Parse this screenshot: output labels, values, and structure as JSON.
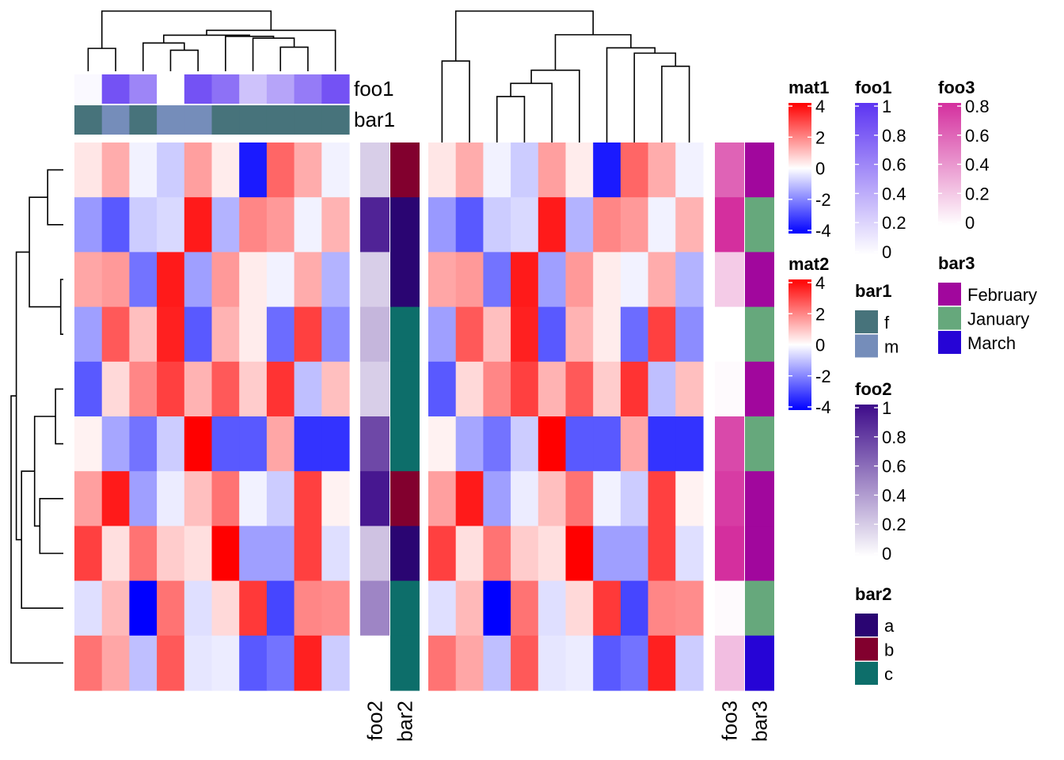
{
  "chart_data": {
    "type": "heatmap",
    "columns": 10,
    "rows": 10,
    "row_order": [
      8,
      7,
      2,
      4,
      6,
      9,
      1,
      0,
      5,
      3
    ],
    "col_order_mat1": [
      5,
      3,
      9,
      6,
      0,
      4,
      8,
      1,
      2,
      7
    ],
    "col_order_mat2": [
      5,
      3,
      9,
      6,
      0,
      4,
      8,
      1,
      2,
      7
    ],
    "mat1": [
      [
        0.5,
        -1.5,
        3.0,
        0.5,
        4.2,
        3.0,
        0.8,
        -0.5,
        -1.5,
        2.2
      ],
      [
        1.0,
        -0.8,
        3.0,
        3.6,
        2.2,
        1.5,
        -0.3,
        0.2,
        -0.2,
        -1.5
      ],
      [
        -1.5,
        -0.2,
        1.3,
        1.6,
        1.6,
        1.4,
        3.6,
        -1.2,
        0.3,
        -2.2
      ],
      [
        -0.4,
        -2.2,
        3.5,
        1.4,
        -0.3,
        2.2,
        2.6,
        -0.8,
        -2.6,
        -1.0
      ],
      [
        -2.6,
        -2.3,
        3.0,
        2.6,
        1.2,
        -1.5,
        3.5,
        -1.8,
        0.3,
        1.0
      ],
      [
        -0.5,
        -2.9,
        1.9,
        1.1,
        0.6,
        -0.5,
        2.2,
        1.8,
        3.1,
        -4.2
      ],
      [
        1.2,
        3.2,
        -1.0,
        0.6,
        2.6,
        -2.6,
        3.0,
        1.0,
        0.8,
        1.9
      ],
      [
        3.6,
        1.6,
        -0.2,
        -2.6,
        -1.2,
        -1.6,
        -0.6,
        1.2,
        1.9,
        -0.8
      ],
      [
        1.5,
        2.4,
        1.3,
        1.3,
        0.3,
        0.4,
        -0.8,
        -0.2,
        -3.6,
        -0.2
      ],
      [
        4.2,
        1.4,
        -3.2,
        -1.4,
        -2.6,
        0.2,
        -0.8,
        -3.2,
        -2.6,
        -2.2
      ]
    ],
    "mat2": [
      [
        0.5,
        -1.5,
        3.0,
        0.5,
        4.2,
        3.0,
        0.8,
        -0.5,
        -1.5,
        2.2
      ],
      [
        1.0,
        -0.8,
        3.0,
        3.6,
        2.2,
        1.5,
        -0.3,
        0.2,
        -0.2,
        -1.5
      ],
      [
        -1.5,
        -0.2,
        1.3,
        1.6,
        1.6,
        1.4,
        3.6,
        -1.2,
        0.3,
        -2.2
      ],
      [
        -0.4,
        -2.2,
        3.5,
        1.4,
        -0.3,
        2.2,
        2.6,
        -0.8,
        -2.6,
        -1.0
      ],
      [
        -2.6,
        -2.3,
        3.0,
        2.6,
        1.2,
        -1.5,
        3.5,
        -1.8,
        0.3,
        1.0
      ],
      [
        -0.5,
        -2.9,
        1.9,
        1.1,
        0.6,
        -0.5,
        2.2,
        1.8,
        3.1,
        -4.2
      ],
      [
        1.2,
        3.2,
        -1.0,
        0.6,
        2.6,
        -2.6,
        3.0,
        1.0,
        0.8,
        1.9
      ],
      [
        3.6,
        1.6,
        -0.2,
        -2.6,
        -1.2,
        -1.6,
        -0.6,
        1.2,
        1.9,
        -0.8
      ],
      [
        1.5,
        2.4,
        1.3,
        1.3,
        0.3,
        0.4,
        -0.8,
        -0.2,
        -3.6,
        -0.2
      ],
      [
        4.2,
        1.4,
        -3.2,
        -1.4,
        -2.6,
        0.2,
        -0.8,
        -3.2,
        -2.6,
        -2.2
      ]
    ],
    "foo1": [
      0.85,
      0.45,
      0.65,
      0.85,
      0.7,
      0.03,
      0.0,
      0.85,
      0.3,
      0.6
    ],
    "bar1": [
      "m",
      "f",
      "f",
      "m",
      "f",
      "f",
      "m",
      "f",
      "f",
      "f"
    ],
    "foo2": [
      0.25,
      0.95,
      0.2,
      0.0,
      0.3,
      0.5,
      0.2,
      0.9,
      0.2,
      0.75
    ],
    "bar2": [
      "a",
      "b",
      "a",
      "c",
      "c",
      "c",
      "c",
      "a",
      "b",
      "c"
    ],
    "foo3": [
      0.8,
      0.75,
      0.2,
      0.25,
      0.0,
      0.02,
      0.02,
      0.8,
      0.6,
      0.7
    ],
    "bar3": [
      "February",
      "February",
      "February",
      "March",
      "January",
      "January",
      "February",
      "January",
      "February",
      "January"
    ],
    "row_dendrogram": [
      [
        0,
        1,
        0.3
      ],
      [
        2,
        3,
        0.05
      ],
      [
        4,
        5,
        0.15
      ],
      [
        6,
        7,
        0.45
      ],
      [
        12,
        13,
        0.55
      ],
      [
        14,
        8,
        0.8
      ],
      [
        11,
        10,
        0.65
      ],
      [
        16,
        15,
        0.9
      ],
      [
        17,
        9,
        1.0
      ]
    ],
    "col_dendrogram_mat1": [
      [
        0,
        1,
        0.38
      ],
      [
        3,
        4,
        0.35
      ],
      [
        2,
        11,
        0.47
      ],
      [
        7,
        8,
        0.4
      ],
      [
        6,
        13,
        0.55
      ],
      [
        5,
        14,
        0.58
      ],
      [
        12,
        15,
        0.6
      ],
      [
        9,
        16,
        0.68
      ],
      [
        10,
        17,
        1.0
      ]
    ],
    "col_dendrogram_mat2": [
      [
        0,
        1,
        0.62
      ],
      [
        2,
        3,
        0.35
      ],
      [
        4,
        11,
        0.45
      ],
      [
        5,
        12,
        0.55
      ],
      [
        8,
        9,
        0.58
      ],
      [
        7,
        14,
        0.68
      ],
      [
        6,
        15,
        0.72
      ],
      [
        13,
        16,
        0.82
      ],
      [
        10,
        17,
        1.0
      ]
    ],
    "colors": {
      "mat_low": "#0000ff",
      "mat_mid": "#ffffff",
      "mat_high": "#ff0000",
      "foo1_high": "#5c34f2",
      "foo2_high": "#3d0b8a",
      "foo3_high": "#d42f9e",
      "bar1": {
        "f": "#47737b",
        "m": "#758dba"
      },
      "bar2": {
        "a": "#2a0572",
        "b": "#82002e",
        "c": "#0d6e6a"
      },
      "bar3": {
        "February": "#a1079d",
        "January": "#66a87c",
        "March": "#2604d6"
      }
    },
    "col_annotation_labels": [
      "foo1",
      "bar1"
    ],
    "row_annotation_labels": [
      "foo2",
      "bar2",
      "foo3",
      "bar3"
    ],
    "legends": {
      "mat1": {
        "title": "mat1",
        "ticks": [
          4,
          2,
          0,
          -2,
          -4
        ],
        "range": [
          -4,
          4
        ]
      },
      "mat2": {
        "title": "mat2",
        "ticks": [
          4,
          2,
          0,
          -2,
          -4
        ],
        "range": [
          -4,
          4
        ]
      },
      "foo1": {
        "title": "foo1",
        "ticks": [
          1,
          0.8,
          0.6,
          0.4,
          0.2,
          0
        ],
        "range": [
          0,
          1
        ]
      },
      "bar1": {
        "title": "bar1",
        "levels": [
          "f",
          "m"
        ]
      },
      "foo2": {
        "title": "foo2",
        "ticks": [
          1,
          0.8,
          0.6,
          0.4,
          0.2,
          0
        ],
        "range": [
          0,
          1
        ]
      },
      "bar2": {
        "title": "bar2",
        "levels": [
          "a",
          "b",
          "c"
        ]
      },
      "foo3": {
        "title": "foo3",
        "ticks": [
          0.8,
          0.6,
          0.4,
          0.2,
          0
        ],
        "range": [
          0,
          0.8
        ]
      },
      "bar3": {
        "title": "bar3",
        "levels": [
          "February",
          "January",
          "March"
        ]
      }
    }
  }
}
